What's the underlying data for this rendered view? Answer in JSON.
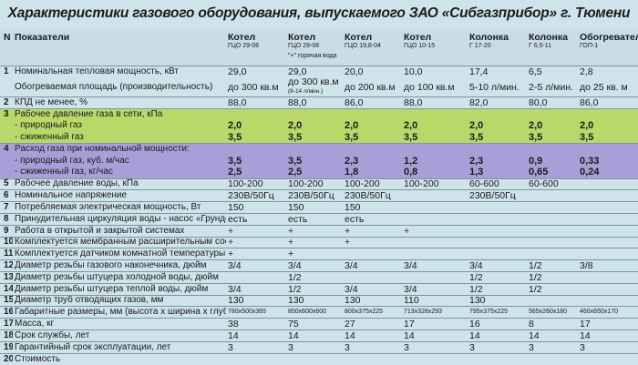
{
  "title": "Характеристики газового оборудования, выпускаемого ЗАО «Сибгазприбор» г. Тюмени",
  "header": {
    "n": "N",
    "param": "Показатели",
    "cols": [
      {
        "name": "Котел",
        "sub": "ГЦО 29-06"
      },
      {
        "name": "Котел",
        "sub": "ГЦО 29-06"
      },
      {
        "name": "Котел",
        "sub": "ГЦО 19,8-04"
      },
      {
        "name": "Котел",
        "sub": "ГЦО 10-15"
      },
      {
        "name": "Колонка",
        "sub": "Г 17-20"
      },
      {
        "name": "Колонка",
        "sub": "Г 6,5-11"
      },
      {
        "name": "Обогреватель",
        "sub": "ГОП-1"
      }
    ],
    "col2_note": "\"+\" горячая вода"
  },
  "rows": [
    {
      "n": "1",
      "label": "Номинальная тепловая мощность, кВт",
      "vals": [
        "29,0",
        "29,0",
        "20,0",
        "10,0",
        "17,4",
        "6,5",
        "2,8"
      ]
    },
    {
      "n": "",
      "label": "Обогреваемая площадь (производительность)",
      "vals": [
        "до 300 кв.м",
        "до 300 кв.м",
        "до 200 кв.м",
        "до 100 кв.м",
        "5-10 л/мин.",
        "2-5 л/мин.",
        "до 25 кв. м"
      ],
      "note2": "(8-14 л/мин.)"
    },
    {
      "n": "2",
      "label": "КПД не менее, %",
      "vals": [
        "88,0",
        "88,0",
        "86,0",
        "88,0",
        "82,0",
        "80,0",
        "86,0"
      ]
    },
    {
      "n": "3",
      "label": "Рабочее давление газа в сети, кПа",
      "vals": [
        "",
        "",
        "",
        "",
        "",
        "",
        ""
      ],
      "cls": "green"
    },
    {
      "n": "",
      "label": "- природный газ",
      "vals": [
        "2,0",
        "2,0",
        "2,0",
        "2,0",
        "2,0",
        "2,0",
        "2,0"
      ],
      "cls": "green"
    },
    {
      "n": "",
      "label": "- сжиженный газ",
      "vals": [
        "3,5",
        "3,5",
        "3,5",
        "3,5",
        "3,5",
        "3,5",
        "3,5"
      ],
      "cls": "green"
    },
    {
      "n": "4",
      "label": "Расход газа при номинальной мощности:",
      "vals": [
        "",
        "",
        "",
        "",
        "",
        "",
        ""
      ],
      "cls": "purple"
    },
    {
      "n": "",
      "label": "- природный газ, куб. м/час",
      "vals": [
        "3,5",
        "3,5",
        "2,3",
        "1,2",
        "2,3",
        "0,9",
        "0,33"
      ],
      "cls": "purple"
    },
    {
      "n": "",
      "label": "- сжиженный газ, кг/час",
      "vals": [
        "2,5",
        "2,5",
        "1,8",
        "0,8",
        "1,3",
        "0,65",
        "0,24"
      ],
      "cls": "purple"
    },
    {
      "n": "5",
      "label": "Рабочее давление воды, кПа",
      "vals": [
        "100-200",
        "100-200",
        "100-200",
        "100-200",
        "60-600",
        "60-600",
        ""
      ]
    },
    {
      "n": "6",
      "label": "Номинальное напряжение",
      "vals": [
        "230В/50Гц",
        "230В/50Гц",
        "230В/50Гц",
        "",
        "230В/50Гц",
        "",
        ""
      ]
    },
    {
      "n": "7",
      "label": "Потребляемая электрическая мощность, Вт",
      "vals": [
        "150",
        "150",
        "150",
        "",
        "",
        "",
        ""
      ]
    },
    {
      "n": "8",
      "label": "Принудительная циркуляция воды - насос «Грундфос»",
      "vals": [
        "есть",
        "есть",
        "есть",
        "",
        "",
        "",
        ""
      ]
    },
    {
      "n": "9",
      "label": "Работа в открытой и закрытой системах",
      "vals": [
        "+",
        "+",
        "+",
        "+",
        "",
        "",
        ""
      ]
    },
    {
      "n": "10",
      "label": "Комплектуется мембранным расширительным сосудом",
      "vals": [
        "+",
        "+",
        "+",
        "",
        "",
        "",
        ""
      ]
    },
    {
      "n": "11",
      "label": "Комплектуется датчиком комнатной температуры",
      "vals": [
        "+",
        "+",
        "",
        "",
        "",
        "",
        ""
      ]
    },
    {
      "n": "12",
      "label": "Диаметр резьбы газового наконечника, дюйм",
      "vals": [
        "3/4",
        "3/4",
        "3/4",
        "3/4",
        "3/4",
        "1/2",
        "3/8"
      ]
    },
    {
      "n": "13",
      "label": "Диаметр резьбы штуцера холодной воды, дюйм",
      "vals": [
        "",
        "1/2",
        "",
        "",
        "1/2",
        "1/2",
        ""
      ]
    },
    {
      "n": "14",
      "label": "Диаметр резьбы штуцера теплой воды, дюйм",
      "vals": [
        "3/4",
        "1/2",
        "3/4",
        "3/4",
        "1/2",
        "1/2",
        ""
      ]
    },
    {
      "n": "15",
      "label": "Диаметр труб отводящих газов, мм",
      "vals": [
        "130",
        "130",
        "130",
        "110",
        "130",
        "",
        ""
      ]
    },
    {
      "n": "16",
      "label": "Габаритные размеры, мм (высота х ширина х глубина)",
      "vals": [
        "780х500х365",
        "850х600х600",
        "800х375х225",
        "713х328х293",
        "795х375х225",
        "565х260х180",
        "460х650х170"
      ],
      "small": true
    },
    {
      "n": "17",
      "label": "Масса, кг",
      "vals": [
        "38",
        "75",
        "27",
        "17",
        "16",
        "8",
        "17"
      ]
    },
    {
      "n": "18",
      "label": "Срок службы, лет",
      "vals": [
        "14",
        "14",
        "14",
        "14",
        "14",
        "14",
        "14"
      ]
    },
    {
      "n": "19",
      "label": "Гарантийный срок эксплуатации, лет",
      "vals": [
        "3",
        "3",
        "3",
        "3",
        "3",
        "3",
        "3"
      ]
    },
    {
      "n": "20",
      "label": "Стоимость",
      "vals": [
        "",
        "",
        "",
        "",
        "",
        "",
        ""
      ]
    }
  ]
}
